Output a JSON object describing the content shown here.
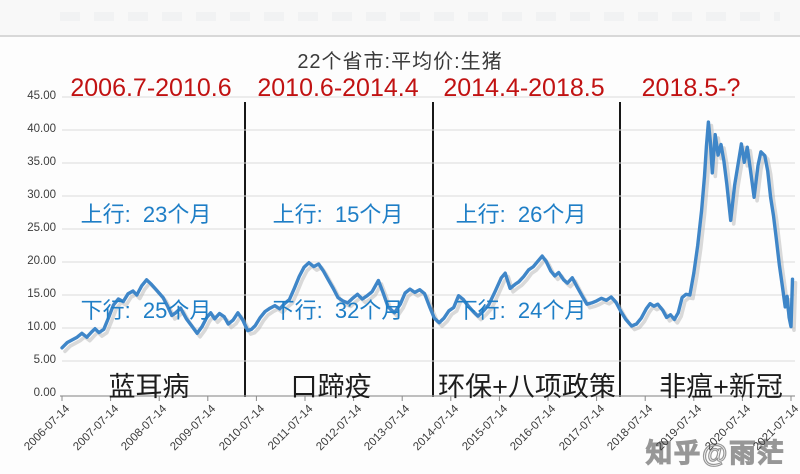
{
  "header": {
    "title": "22个省市:平均价:生猪"
  },
  "periods": [
    {
      "range": "2006.7-2010.6",
      "up": "上行:  23个月",
      "down": "下行:  25个月",
      "event": "蓝耳病"
    },
    {
      "range": "2010.6-2014.4",
      "up": "上行:  15个月",
      "down": "下行:  32个月",
      "event": "口蹄疫"
    },
    {
      "range": "2014.4-2018.5",
      "up": "上行:  26个月",
      "down": "下行:  24个月",
      "event": "环保+八项政策"
    },
    {
      "range": "2018.5-?",
      "event": "非瘟+新冠"
    }
  ],
  "watermark": "知乎@雨茫",
  "chart_data": {
    "type": "line",
    "title": "22个省市:平均价:生猪",
    "xlabel": "",
    "ylabel": "",
    "ylim": [
      0,
      45
    ],
    "y_tick_step": 5,
    "y_tick_labels": [
      "0.00",
      "5.00",
      "10.00",
      "15.00",
      "20.00",
      "25.00",
      "30.00",
      "35.00",
      "40.00",
      "45.00"
    ],
    "x_tick_labels": [
      "2006-07-14",
      "2007-07-14",
      "2008-07-14",
      "2009-07-14",
      "2010-07-14",
      "2011-07-14",
      "2012-07-14",
      "2013-07-14",
      "2014-07-14",
      "2015-07-14",
      "2016-07-14",
      "2017-07-14",
      "2018-07-14",
      "2019-07-14",
      "2020-07-14",
      "2021-07-14"
    ],
    "grid": true,
    "legend": false,
    "cycle_annotations": [
      {
        "period": "2006.7-2010.6",
        "up_months": 23,
        "down_months": 25,
        "driver": "蓝耳病"
      },
      {
        "period": "2010.6-2014.4",
        "up_months": 15,
        "down_months": 32,
        "driver": "口蹄疫"
      },
      {
        "period": "2014.4-2018.5",
        "up_months": 26,
        "down_months": 24,
        "driver": "环保+八项政策"
      },
      {
        "period": "2018.5-?",
        "driver": "非瘟+新冠"
      }
    ],
    "series": [
      {
        "name": "22个省市:平均价:生猪",
        "color": "#3F86C8",
        "points": [
          [
            2006.54,
            7.0
          ],
          [
            2006.65,
            7.8
          ],
          [
            2006.75,
            8.2
          ],
          [
            2006.85,
            8.6
          ],
          [
            2006.95,
            9.2
          ],
          [
            2007.05,
            8.6
          ],
          [
            2007.15,
            9.4
          ],
          [
            2007.22,
            9.9
          ],
          [
            2007.3,
            9.3
          ],
          [
            2007.4,
            9.8
          ],
          [
            2007.5,
            11.6
          ],
          [
            2007.6,
            13.5
          ],
          [
            2007.7,
            14.4
          ],
          [
            2007.8,
            14.0
          ],
          [
            2007.9,
            15.2
          ],
          [
            2008.0,
            15.6
          ],
          [
            2008.08,
            15.0
          ],
          [
            2008.18,
            16.4
          ],
          [
            2008.28,
            17.3
          ],
          [
            2008.38,
            16.6
          ],
          [
            2008.5,
            15.6
          ],
          [
            2008.62,
            14.6
          ],
          [
            2008.72,
            13.2
          ],
          [
            2008.8,
            11.9
          ],
          [
            2008.88,
            12.3
          ],
          [
            2008.98,
            13.0
          ],
          [
            2009.1,
            11.4
          ],
          [
            2009.2,
            10.4
          ],
          [
            2009.32,
            9.2
          ],
          [
            2009.42,
            10.2
          ],
          [
            2009.52,
            11.6
          ],
          [
            2009.6,
            12.3
          ],
          [
            2009.68,
            11.4
          ],
          [
            2009.78,
            12.2
          ],
          [
            2009.88,
            11.7
          ],
          [
            2009.96,
            10.6
          ],
          [
            2010.06,
            11.2
          ],
          [
            2010.16,
            12.3
          ],
          [
            2010.26,
            11.2
          ],
          [
            2010.36,
            9.6
          ],
          [
            2010.44,
            9.8
          ],
          [
            2010.52,
            10.4
          ],
          [
            2010.62,
            11.6
          ],
          [
            2010.72,
            12.5
          ],
          [
            2010.82,
            13.0
          ],
          [
            2010.92,
            13.4
          ],
          [
            2011.02,
            12.9
          ],
          [
            2011.12,
            13.7
          ],
          [
            2011.22,
            14.3
          ],
          [
            2011.32,
            16.0
          ],
          [
            2011.42,
            17.8
          ],
          [
            2011.52,
            19.2
          ],
          [
            2011.62,
            19.9
          ],
          [
            2011.72,
            19.3
          ],
          [
            2011.82,
            19.7
          ],
          [
            2011.92,
            18.6
          ],
          [
            2012.02,
            17.3
          ],
          [
            2012.12,
            16.0
          ],
          [
            2012.22,
            14.6
          ],
          [
            2012.32,
            14.1
          ],
          [
            2012.42,
            13.8
          ],
          [
            2012.52,
            14.5
          ],
          [
            2012.62,
            15.1
          ],
          [
            2012.72,
            14.4
          ],
          [
            2012.82,
            14.9
          ],
          [
            2012.92,
            15.5
          ],
          [
            2013.05,
            17.2
          ],
          [
            2013.15,
            15.3
          ],
          [
            2013.25,
            13.2
          ],
          [
            2013.38,
            12.3
          ],
          [
            2013.5,
            13.6
          ],
          [
            2013.6,
            15.3
          ],
          [
            2013.7,
            15.9
          ],
          [
            2013.8,
            15.4
          ],
          [
            2013.9,
            15.8
          ],
          [
            2014.0,
            15.2
          ],
          [
            2014.1,
            13.3
          ],
          [
            2014.2,
            11.5
          ],
          [
            2014.3,
            10.8
          ],
          [
            2014.4,
            11.5
          ],
          [
            2014.5,
            12.6
          ],
          [
            2014.6,
            13.1
          ],
          [
            2014.7,
            14.9
          ],
          [
            2014.8,
            14.3
          ],
          [
            2014.9,
            13.3
          ],
          [
            2015.0,
            12.5
          ],
          [
            2015.1,
            11.8
          ],
          [
            2015.2,
            12.5
          ],
          [
            2015.32,
            13.5
          ],
          [
            2015.45,
            15.5
          ],
          [
            2015.58,
            17.6
          ],
          [
            2015.66,
            18.3
          ],
          [
            2015.76,
            16.0
          ],
          [
            2015.86,
            16.6
          ],
          [
            2015.94,
            17.0
          ],
          [
            2016.04,
            17.8
          ],
          [
            2016.14,
            18.8
          ],
          [
            2016.24,
            19.3
          ],
          [
            2016.34,
            20.2
          ],
          [
            2016.42,
            20.9
          ],
          [
            2016.5,
            20.1
          ],
          [
            2016.6,
            18.6
          ],
          [
            2016.68,
            17.9
          ],
          [
            2016.76,
            18.4
          ],
          [
            2016.86,
            17.3
          ],
          [
            2016.94,
            16.8
          ],
          [
            2017.04,
            17.6
          ],
          [
            2017.14,
            16.2
          ],
          [
            2017.24,
            14.9
          ],
          [
            2017.34,
            13.6
          ],
          [
            2017.44,
            13.8
          ],
          [
            2017.54,
            14.1
          ],
          [
            2017.64,
            14.5
          ],
          [
            2017.74,
            14.2
          ],
          [
            2017.84,
            14.7
          ],
          [
            2017.94,
            13.9
          ],
          [
            2018.04,
            12.5
          ],
          [
            2018.14,
            11.3
          ],
          [
            2018.26,
            10.3
          ],
          [
            2018.36,
            10.6
          ],
          [
            2018.46,
            11.5
          ],
          [
            2018.56,
            12.9
          ],
          [
            2018.64,
            13.7
          ],
          [
            2018.72,
            13.3
          ],
          [
            2018.8,
            13.6
          ],
          [
            2018.9,
            12.7
          ],
          [
            2018.98,
            11.6
          ],
          [
            2019.06,
            12.0
          ],
          [
            2019.14,
            11.3
          ],
          [
            2019.22,
            12.3
          ],
          [
            2019.3,
            14.6
          ],
          [
            2019.38,
            15.1
          ],
          [
            2019.46,
            15.0
          ],
          [
            2019.54,
            18.3
          ],
          [
            2019.62,
            22.5
          ],
          [
            2019.7,
            27.8
          ],
          [
            2019.76,
            33.0
          ],
          [
            2019.8,
            37.5
          ],
          [
            2019.84,
            41.2
          ],
          [
            2019.88,
            38.3
          ],
          [
            2019.92,
            33.5
          ],
          [
            2019.98,
            39.3
          ],
          [
            2020.04,
            36.2
          ],
          [
            2020.1,
            37.8
          ],
          [
            2020.16,
            35.3
          ],
          [
            2020.22,
            31.8
          ],
          [
            2020.3,
            26.3
          ],
          [
            2020.38,
            31.6
          ],
          [
            2020.46,
            35.2
          ],
          [
            2020.52,
            37.9
          ],
          [
            2020.58,
            35.1
          ],
          [
            2020.64,
            37.4
          ],
          [
            2020.72,
            33.2
          ],
          [
            2020.78,
            29.8
          ],
          [
            2020.86,
            34.6
          ],
          [
            2020.92,
            36.7
          ],
          [
            2021.0,
            36.1
          ],
          [
            2021.06,
            33.8
          ],
          [
            2021.12,
            29.8
          ],
          [
            2021.18,
            27.0
          ],
          [
            2021.24,
            23.4
          ],
          [
            2021.3,
            19.6
          ],
          [
            2021.36,
            16.4
          ],
          [
            2021.42,
            13.2
          ],
          [
            2021.46,
            14.8
          ],
          [
            2021.5,
            11.6
          ],
          [
            2021.54,
            10.2
          ],
          [
            2021.57,
            17.4
          ]
        ]
      }
    ]
  }
}
